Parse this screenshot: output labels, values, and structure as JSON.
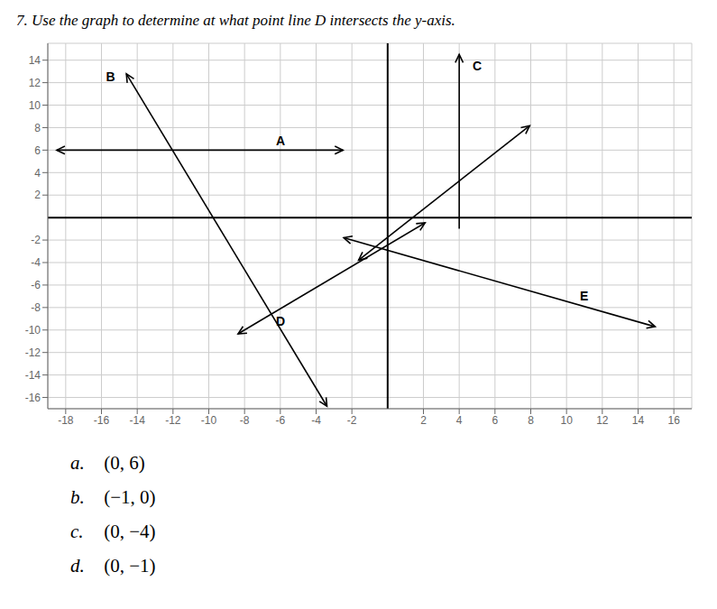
{
  "chart_data": {
    "type": "line",
    "title": "7. Use the graph to determine at what point line D intersects the y-axis.",
    "xlim": [
      -19,
      17
    ],
    "ylim": [
      -17,
      15.5
    ],
    "xticks": [
      -18,
      -16,
      -14,
      -12,
      -10,
      -8,
      -6,
      -4,
      -2,
      2,
      4,
      6,
      8,
      10,
      12,
      14,
      16
    ],
    "yticks": [
      -16,
      -14,
      -12,
      -10,
      -8,
      -6,
      -4,
      -2,
      2,
      4,
      6,
      8,
      10,
      12,
      14
    ],
    "grid": true,
    "series": [
      {
        "color": "black",
        "marker": "arrow_both",
        "x": [
          -14.6064,
          -3.3936
        ],
        "values": [
          12.7805,
          -16.7805
        ]
      },
      {
        "color": "black",
        "marker": "arrow_both",
        "x": [
          -18.5,
          -2.5
        ],
        "values": [
          6,
          6
        ]
      },
      {
        "color": "black",
        "marker": "arrow_end",
        "x": [
          4,
          4
        ],
        "values": [
          -1,
          14.5
        ]
      },
      {
        "color": "black",
        "marker": "arrow_both",
        "x": [
          -8.3635,
          2.0905
        ],
        "values": [
          -10.3433,
          -0.4701
        ]
      },
      {
        "color": "black",
        "marker": "arrow_both",
        "x": [
          -1.6247,
          7.937
        ],
        "values": [
          -3.7809,
          8.1713
        ]
      },
      {
        "color": "black",
        "marker": "arrow_both",
        "x": [
          -2.4552,
          14.9552
        ],
        "values": [
          -1.7931,
          -9.7069
        ]
      }
    ],
    "annotations": [
      {
        "text": "B",
        "x": -16,
        "y": 12.5
      },
      {
        "text": "A",
        "x": -6.5,
        "y": 6.8
      },
      {
        "text": "C",
        "x": 4.5,
        "y": 13.5
      },
      {
        "text": "D",
        "x": -6.5,
        "y": -9.2
      },
      {
        "text": "E",
        "x": 10.5,
        "y": -7
      }
    ],
    "answers": [
      {
        "letter": "a.",
        "text": " (0, 6)"
      },
      {
        "letter": "b.",
        "text": " (−1, 0)"
      },
      {
        "letter": "c.",
        "text": " (0, −4)"
      },
      {
        "letter": "d.",
        "text": " (0, −1)"
      }
    ]
  }
}
